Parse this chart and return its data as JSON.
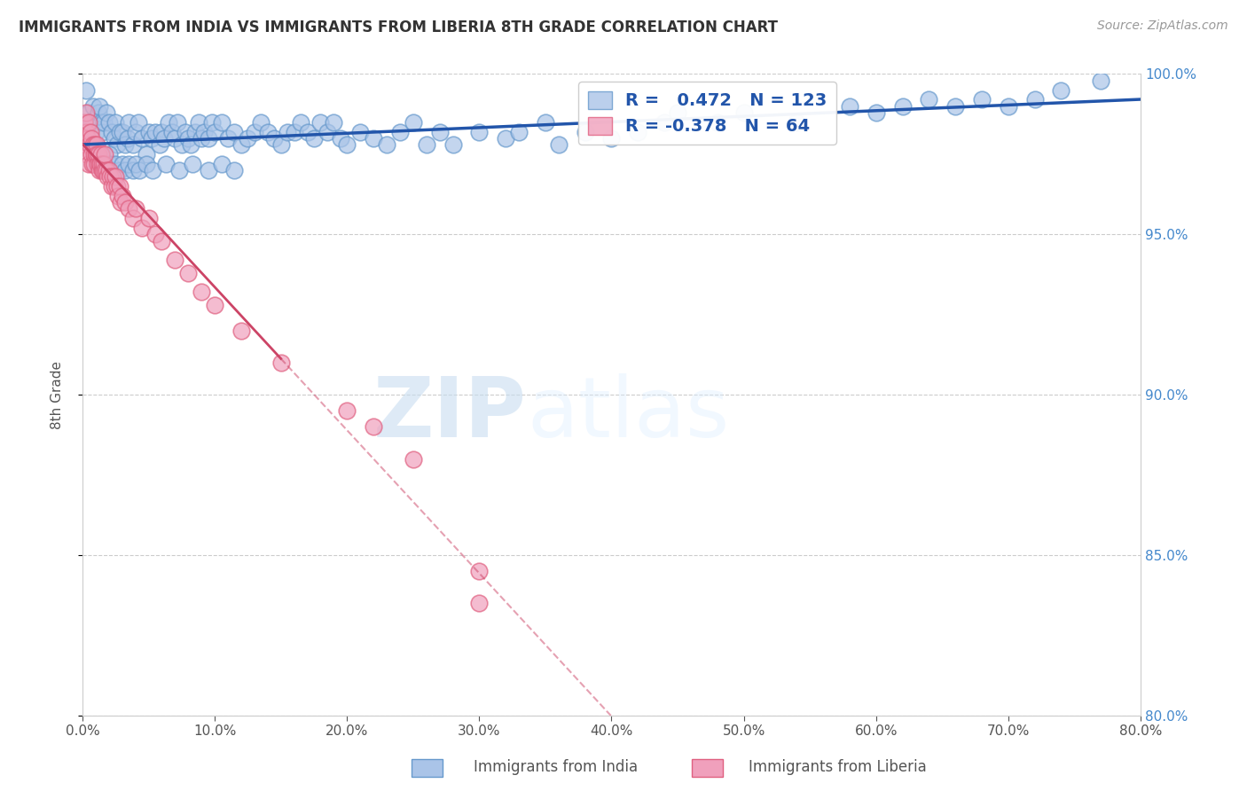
{
  "title": "IMMIGRANTS FROM INDIA VS IMMIGRANTS FROM LIBERIA 8TH GRADE CORRELATION CHART",
  "source": "Source: ZipAtlas.com",
  "xlabel_india": "Immigrants from India",
  "xlabel_liberia": "Immigrants from Liberia",
  "ylabel": "8th Grade",
  "xlim": [
    0.0,
    80.0
  ],
  "ylim": [
    80.0,
    100.0
  ],
  "r_india": 0.472,
  "n_india": 123,
  "r_liberia": -0.378,
  "n_liberia": 64,
  "india_color": "#aac4e8",
  "liberia_color": "#f0a0bc",
  "india_edge_color": "#6699cc",
  "liberia_edge_color": "#e06080",
  "india_line_color": "#2255aa",
  "liberia_line_color": "#cc4466",
  "watermark_zip": "ZIP",
  "watermark_atlas": "atlas",
  "background_color": "#ffffff",
  "legend_r_color": "#2255aa",
  "legend_n_color": "#333333",
  "india_points_x": [
    0.3,
    0.5,
    0.7,
    0.8,
    1.0,
    1.2,
    1.3,
    1.4,
    1.5,
    1.6,
    1.8,
    2.0,
    2.2,
    2.4,
    2.5,
    2.6,
    2.8,
    3.0,
    3.2,
    3.4,
    3.5,
    3.8,
    4.0,
    4.2,
    4.5,
    4.8,
    5.0,
    5.2,
    5.5,
    5.8,
    6.0,
    6.2,
    6.5,
    6.8,
    7.0,
    7.2,
    7.5,
    7.8,
    8.0,
    8.2,
    8.5,
    8.8,
    9.0,
    9.2,
    9.5,
    9.8,
    10.0,
    10.5,
    11.0,
    11.5,
    12.0,
    12.5,
    13.0,
    13.5,
    14.0,
    14.5,
    15.0,
    15.5,
    16.0,
    16.5,
    17.0,
    17.5,
    18.0,
    18.5,
    19.0,
    19.5,
    20.0,
    21.0,
    22.0,
    23.0,
    24.0,
    25.0,
    26.0,
    27.0,
    28.0,
    30.0,
    32.0,
    33.0,
    35.0,
    36.0,
    38.0,
    40.0,
    42.0,
    44.0,
    45.0,
    48.0,
    50.0,
    54.0,
    58.0,
    60.0,
    62.0,
    64.0,
    66.0,
    68.0,
    70.0,
    72.0,
    74.0,
    77.0,
    1.0,
    1.1,
    1.3,
    1.5,
    1.6,
    1.8,
    2.0,
    2.1,
    2.3,
    2.5,
    2.8,
    3.0,
    3.2,
    3.5,
    3.8,
    4.0,
    4.3,
    4.8,
    5.3,
    6.3,
    7.3,
    8.3,
    9.5,
    10.5,
    11.5
  ],
  "india_points_y": [
    99.5,
    98.8,
    98.5,
    99.0,
    98.2,
    98.8,
    99.0,
    98.5,
    98.2,
    98.5,
    98.8,
    98.5,
    98.2,
    98.0,
    98.5,
    97.8,
    98.2,
    98.2,
    97.8,
    98.0,
    98.5,
    97.8,
    98.2,
    98.5,
    98.0,
    97.5,
    98.2,
    98.0,
    98.2,
    97.8,
    98.2,
    98.0,
    98.5,
    98.2,
    98.0,
    98.5,
    97.8,
    98.2,
    98.0,
    97.8,
    98.2,
    98.5,
    98.0,
    98.2,
    98.0,
    98.5,
    98.2,
    98.5,
    98.0,
    98.2,
    97.8,
    98.0,
    98.2,
    98.5,
    98.2,
    98.0,
    97.8,
    98.2,
    98.2,
    98.5,
    98.2,
    98.0,
    98.5,
    98.2,
    98.5,
    98.0,
    97.8,
    98.2,
    98.0,
    97.8,
    98.2,
    98.5,
    97.8,
    98.2,
    97.8,
    98.2,
    98.0,
    98.2,
    98.5,
    97.8,
    98.2,
    98.0,
    98.2,
    98.5,
    98.8,
    98.5,
    98.8,
    98.5,
    99.0,
    98.8,
    99.0,
    99.2,
    99.0,
    99.2,
    99.0,
    99.2,
    99.5,
    99.8,
    97.2,
    97.5,
    97.2,
    97.5,
    97.2,
    97.0,
    97.5,
    97.2,
    97.0,
    97.2,
    97.0,
    97.2,
    97.0,
    97.2,
    97.0,
    97.2,
    97.0,
    97.2,
    97.0,
    97.2,
    97.0,
    97.2,
    97.0,
    97.2,
    97.0
  ],
  "liberia_points_x": [
    0.15,
    0.2,
    0.25,
    0.3,
    0.35,
    0.4,
    0.45,
    0.5,
    0.55,
    0.6,
    0.65,
    0.7,
    0.75,
    0.8,
    0.85,
    0.9,
    0.95,
    1.0,
    1.05,
    1.1,
    1.15,
    1.2,
    1.25,
    1.3,
    1.35,
    1.4,
    1.45,
    1.5,
    1.55,
    1.6,
    1.65,
    1.7,
    1.8,
    1.9,
    2.0,
    2.1,
    2.2,
    2.3,
    2.4,
    2.5,
    2.6,
    2.7,
    2.8,
    2.9,
    3.0,
    3.2,
    3.5,
    3.8,
    4.0,
    4.5,
    5.0,
    5.5,
    6.0,
    7.0,
    8.0,
    9.0,
    10.0,
    12.0,
    15.0,
    20.0,
    22.0,
    25.0,
    30.0,
    30.0
  ],
  "liberia_points_y": [
    98.5,
    97.8,
    98.2,
    98.8,
    97.5,
    98.0,
    97.2,
    98.5,
    97.8,
    98.2,
    97.5,
    98.0,
    97.2,
    97.8,
    97.2,
    97.5,
    97.8,
    97.5,
    97.8,
    97.5,
    97.2,
    97.5,
    97.2,
    97.0,
    97.2,
    97.5,
    97.0,
    97.2,
    97.0,
    97.2,
    97.0,
    97.5,
    97.0,
    96.8,
    97.0,
    96.8,
    96.5,
    96.8,
    96.5,
    96.8,
    96.5,
    96.2,
    96.5,
    96.0,
    96.2,
    96.0,
    95.8,
    95.5,
    95.8,
    95.2,
    95.5,
    95.0,
    94.8,
    94.2,
    93.8,
    93.2,
    92.8,
    92.0,
    91.0,
    89.5,
    89.0,
    88.0,
    84.5,
    83.5
  ]
}
